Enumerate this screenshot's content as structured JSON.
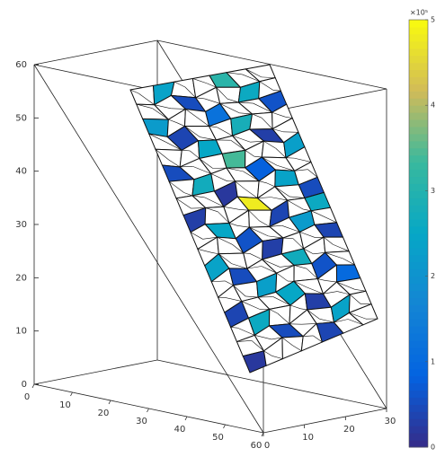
{
  "chart_data": {
    "type": "surface3d",
    "xlim": [
      0,
      60
    ],
    "xticks": [
      0,
      10,
      20,
      30,
      40,
      50,
      60
    ],
    "ylim": [
      0,
      30
    ],
    "yticks": [
      0,
      10,
      20,
      30
    ],
    "zlim": [
      0,
      60
    ],
    "zticks": [
      0,
      10,
      20,
      30,
      40,
      50,
      60
    ],
    "clim": [
      0,
      5
    ],
    "cticks": [
      0,
      1,
      2,
      3,
      4,
      5
    ],
    "color_exponent_label": "×10⁵",
    "colormap": [
      "#352a87",
      "#0363e1",
      "#1485d4",
      "#06a7c6",
      "#38b99e",
      "#d1bb59",
      "#f9fb0e"
    ],
    "cells": [
      [
        null,
        2.4,
        null,
        null,
        3.1,
        null,
        null
      ],
      [
        null,
        null,
        0.5,
        null,
        null,
        2.6,
        null
      ],
      [
        2.2,
        null,
        null,
        1.2,
        null,
        null,
        0.6
      ],
      [
        null,
        0.4,
        null,
        null,
        2.8,
        null,
        null
      ],
      [
        null,
        null,
        2.5,
        null,
        null,
        0.3,
        null
      ],
      [
        0.5,
        null,
        null,
        3.4,
        null,
        null,
        2.3
      ],
      [
        null,
        2.7,
        null,
        null,
        0.8,
        null,
        null
      ],
      [
        null,
        null,
        0.2,
        null,
        null,
        2.4,
        null
      ],
      [
        0.3,
        null,
        null,
        4.8,
        null,
        null,
        0.5
      ],
      [
        null,
        2.5,
        null,
        null,
        0.4,
        null,
        2.6
      ],
      [
        null,
        null,
        0.6,
        null,
        null,
        2.2,
        null
      ],
      [
        2.4,
        null,
        null,
        0.3,
        null,
        null,
        0.4
      ],
      [
        null,
        0.5,
        null,
        null,
        2.7,
        null,
        null
      ],
      [
        null,
        null,
        2.3,
        null,
        null,
        0.6,
        null
      ],
      [
        0.4,
        null,
        null,
        2.5,
        null,
        null,
        1.0
      ],
      [
        null,
        2.6,
        null,
        null,
        0.3,
        null,
        null
      ],
      [
        null,
        null,
        0.5,
        null,
        null,
        2.4,
        null
      ],
      [
        0.2,
        null,
        null,
        null,
        0.4,
        null,
        null
      ]
    ]
  }
}
